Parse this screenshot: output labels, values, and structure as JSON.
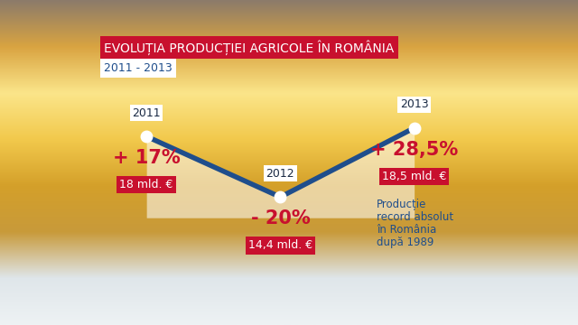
{
  "chart_data": {
    "type": "line",
    "title": "EVOLUȚIA PRODUCȚIEI AGRICOLE ÎN ROMÂNIA",
    "subtitle": "2011 - 2013",
    "categories": [
      "2011",
      "2012",
      "2013"
    ],
    "values": [
      18,
      14.4,
      18.5
    ],
    "value_labels": [
      "18 mld. €",
      "14,4 mld. €",
      "18,5 mld. €"
    ],
    "changes": [
      17,
      -20,
      28.5
    ],
    "change_labels": [
      "+ 17%",
      "- 20%",
      "+ 28,5%"
    ],
    "annotation": "Producție\nrecord absolut\nîn România\ndupă 1989",
    "color": "#1f4e8c",
    "marker": "o",
    "line_style": "solid",
    "data_labels": true,
    "tick_labels": false
  }
}
